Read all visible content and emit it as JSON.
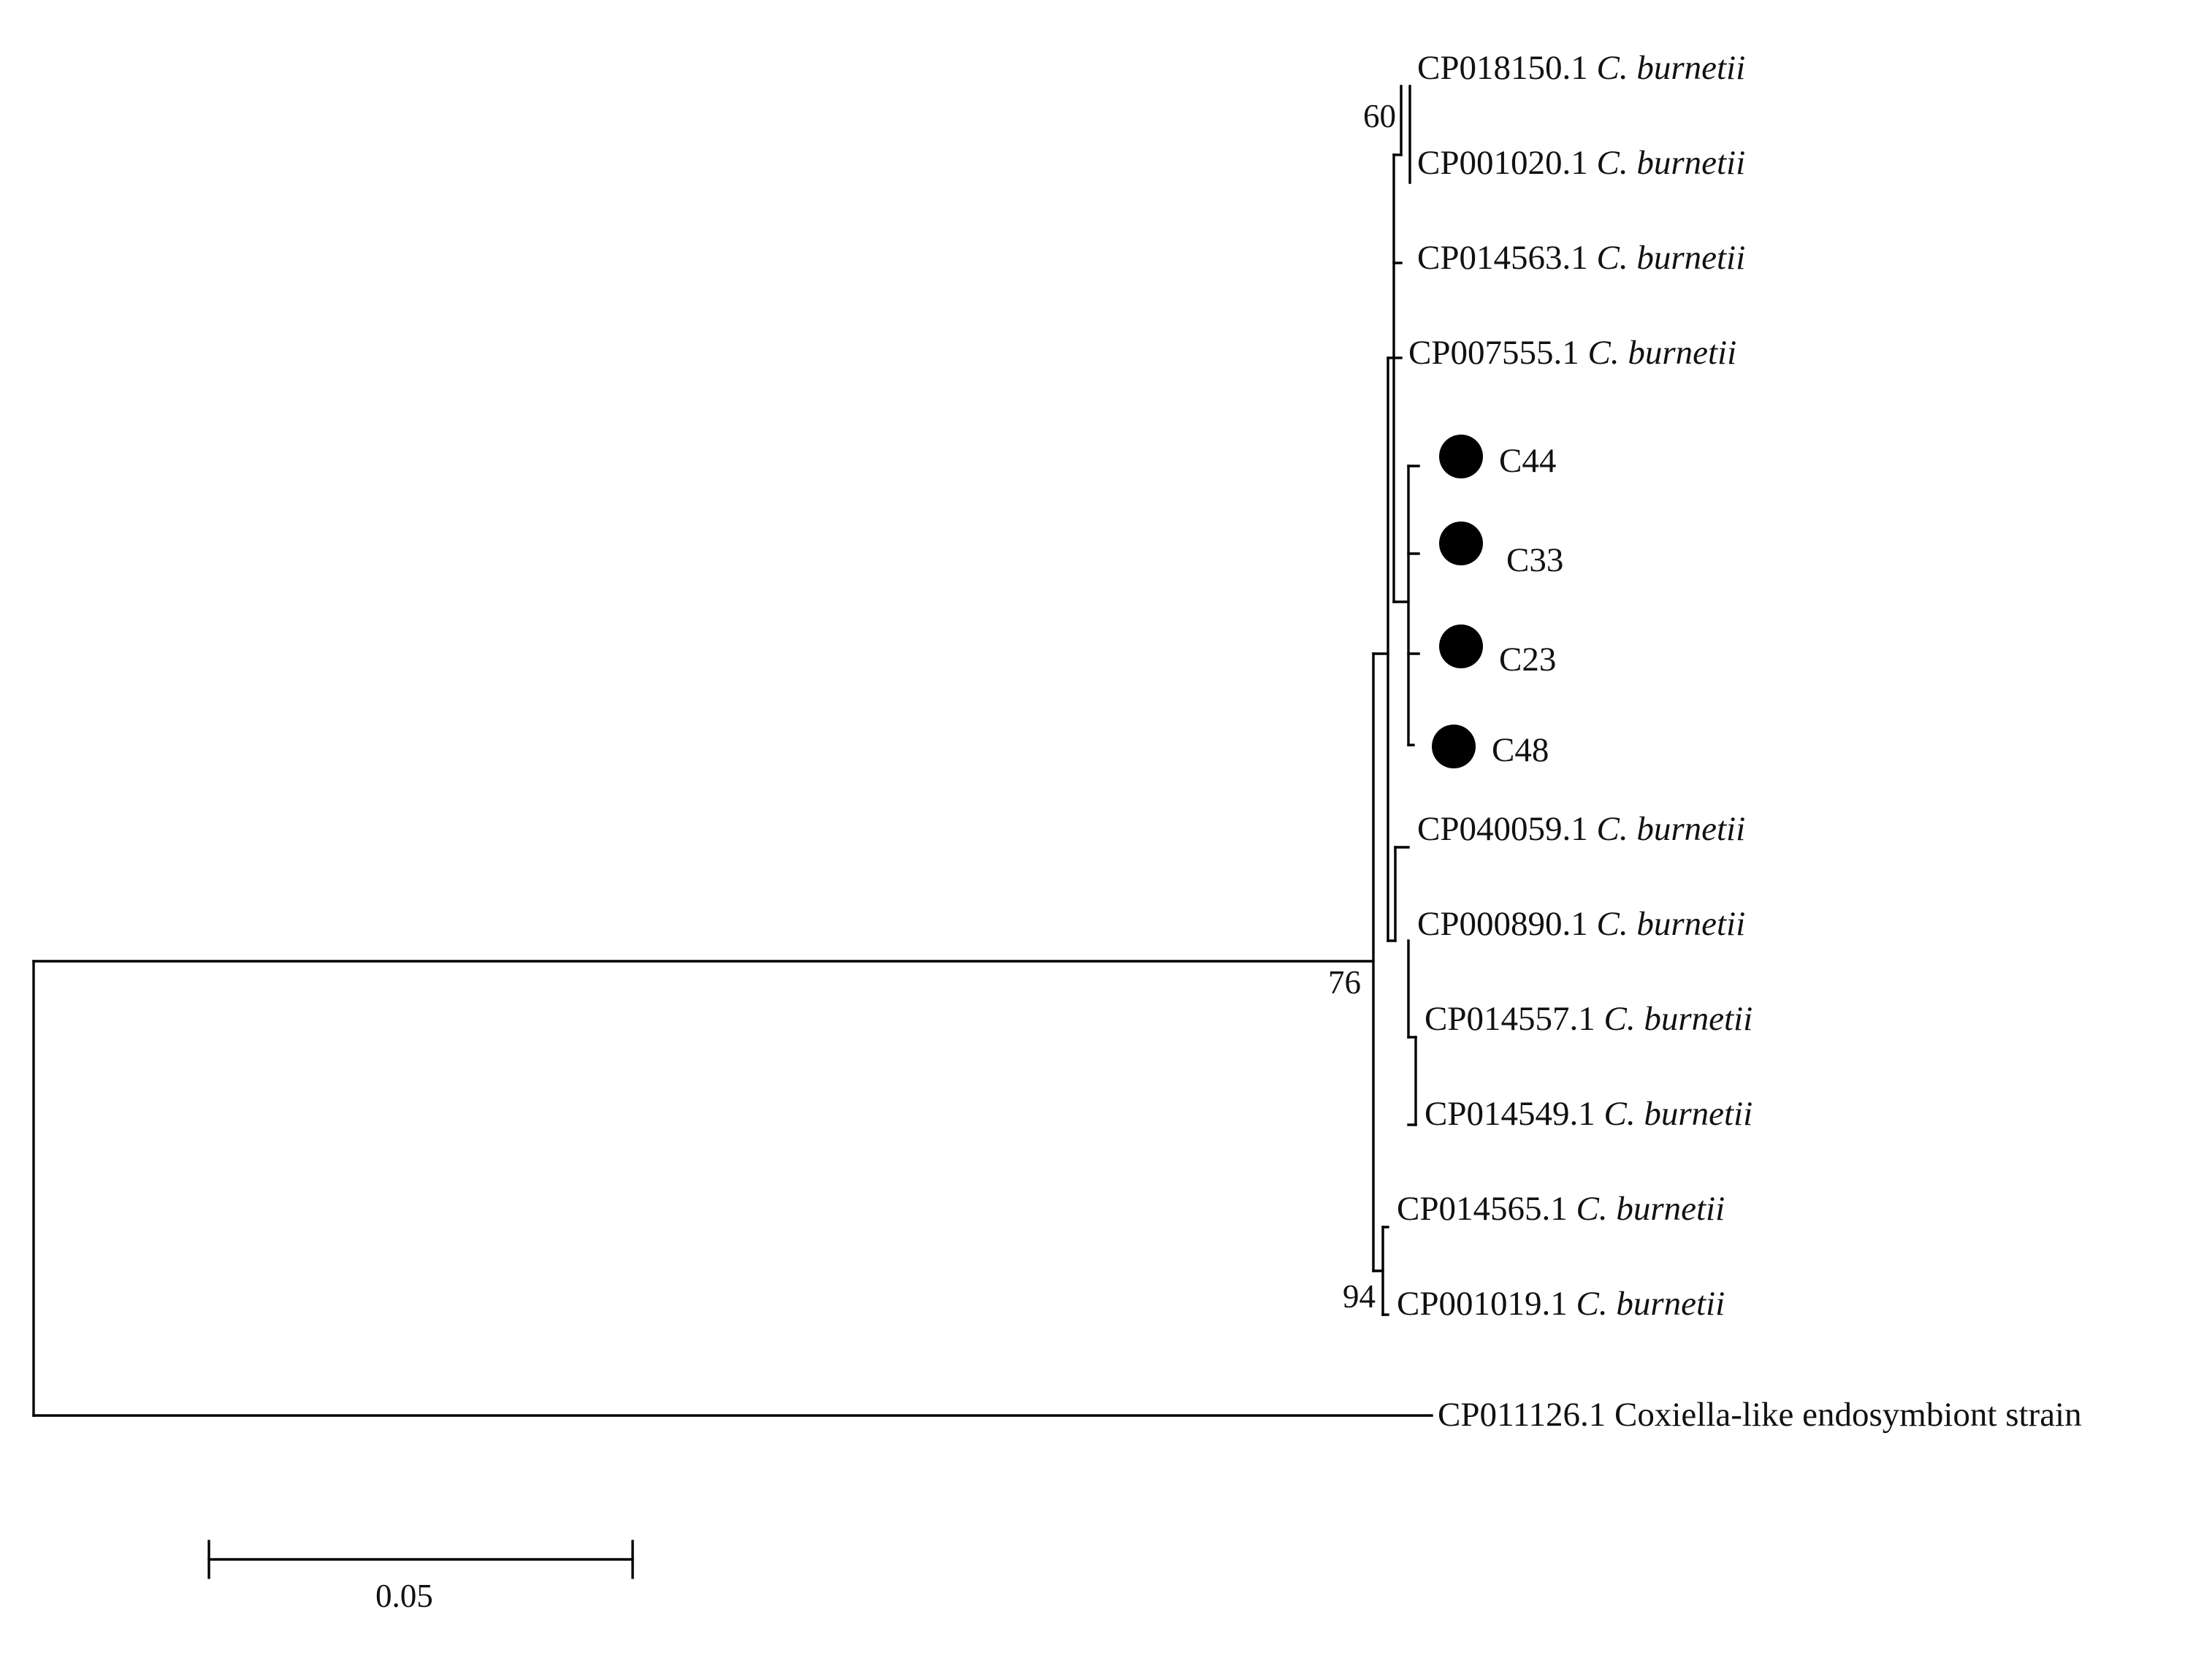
{
  "tree": {
    "taxa": [
      {
        "accession": "CP018150.1",
        "species": "C. burnetii"
      },
      {
        "accession": "CP001020.1",
        "species": "C. burnetii"
      },
      {
        "accession": "CP014563.1",
        "species": "C. burnetii"
      },
      {
        "accession": "CP007555.1",
        "species": "C. burnetii"
      },
      {
        "accession": "C44",
        "species": ""
      },
      {
        "accession": "C33",
        "species": ""
      },
      {
        "accession": "C23",
        "species": ""
      },
      {
        "accession": "C48",
        "species": ""
      },
      {
        "accession": "CP040059.1",
        "species": "C. burnetii"
      },
      {
        "accession": "CP000890.1",
        "species": "C. burnetii"
      },
      {
        "accession": "CP014557.1",
        "species": "C. burnetii"
      },
      {
        "accession": "CP014549.1",
        "species": "C. burnetii"
      },
      {
        "accession": "CP014565.1",
        "species": "C. burnetii"
      },
      {
        "accession": "CP001019.1",
        "species": "C. burnetii"
      },
      {
        "accession": "CP011126.1",
        "species": "Coxiella-like endosymbiont strain"
      }
    ],
    "bootstrap": [
      "60",
      "76",
      "94"
    ],
    "scale_bar": {
      "label": "0.05"
    },
    "marker_color": "#000000"
  }
}
